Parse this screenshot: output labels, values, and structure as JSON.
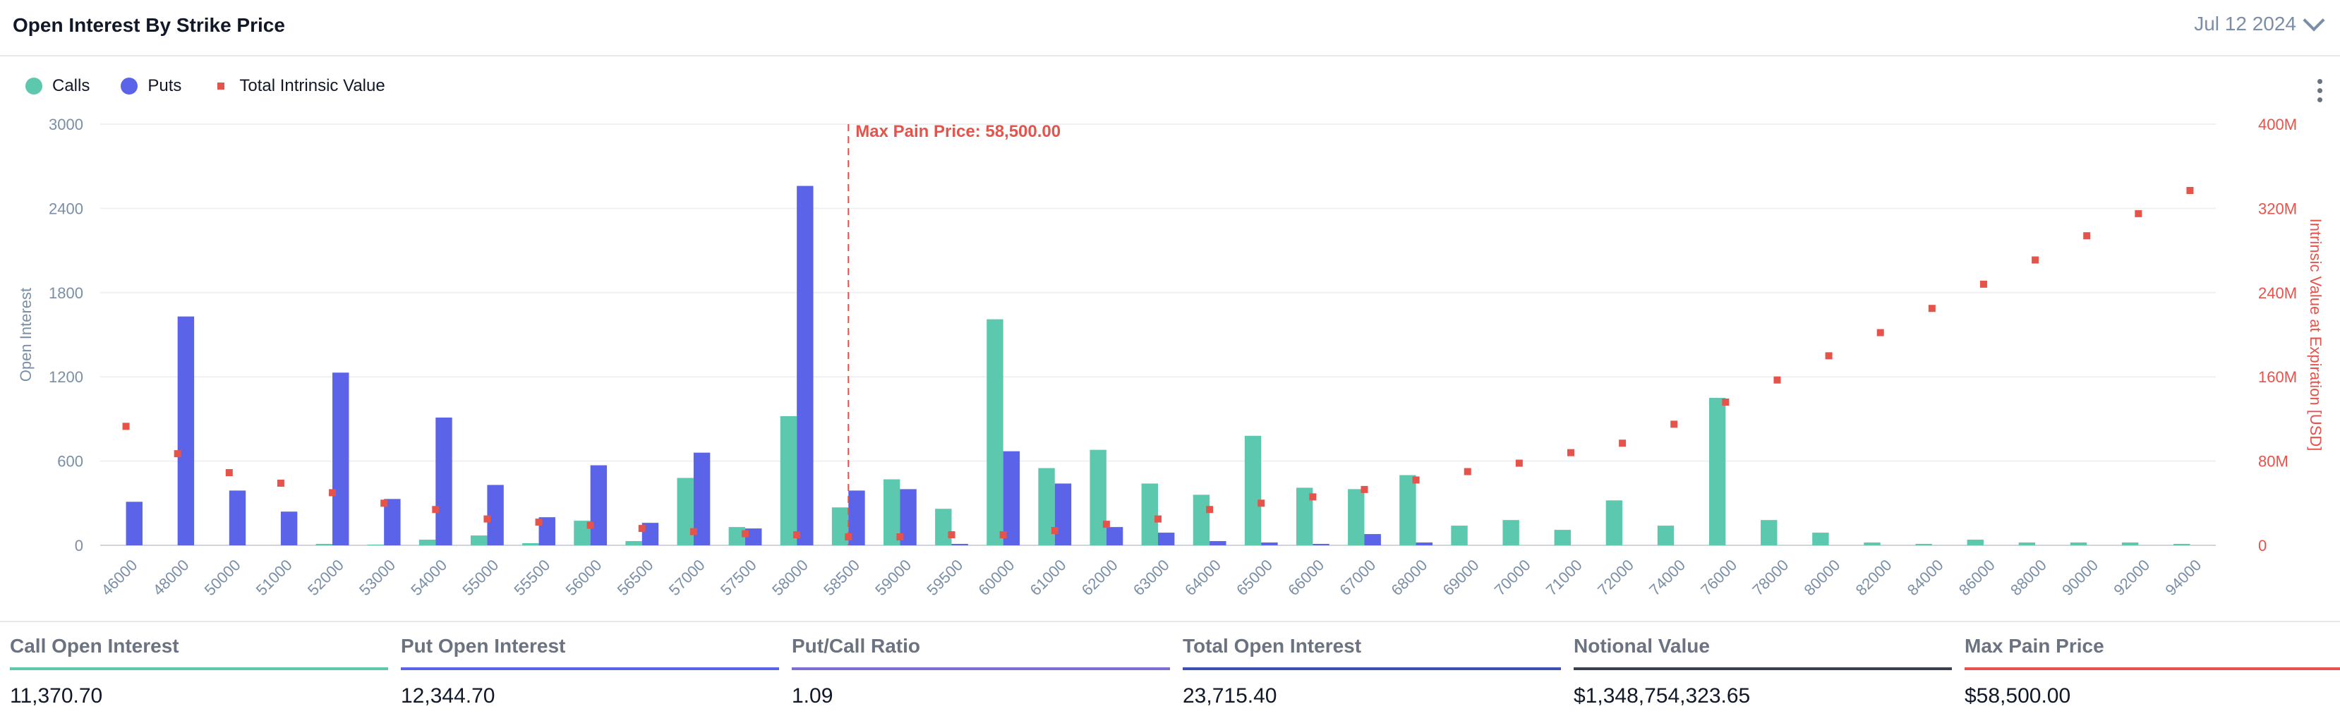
{
  "header": {
    "title": "Open Interest By Strike Price",
    "date": "Jul 12 2024"
  },
  "legend": {
    "calls": "Calls",
    "puts": "Puts",
    "intrinsic": "Total Intrinsic Value"
  },
  "colors": {
    "calls": "#5cc8ad",
    "puts": "#5b63e8",
    "intrinsic": "#e5534b",
    "maxpain": "#e5534b",
    "axis": "#7a8fa6",
    "grid": "#eef1f4"
  },
  "chart_data": {
    "type": "bar",
    "categories": [
      "46000",
      "48000",
      "50000",
      "51000",
      "52000",
      "53000",
      "54000",
      "55000",
      "55500",
      "56000",
      "56500",
      "57000",
      "57500",
      "58000",
      "58500",
      "59000",
      "59500",
      "60000",
      "61000",
      "62000",
      "63000",
      "64000",
      "65000",
      "66000",
      "67000",
      "68000",
      "69000",
      "70000",
      "71000",
      "72000",
      "74000",
      "76000",
      "78000",
      "80000",
      "82000",
      "84000",
      "86000",
      "88000",
      "90000",
      "92000",
      "94000"
    ],
    "series": [
      {
        "name": "Calls",
        "axis": "left",
        "values": [
          0,
          0,
          0,
          0,
          10,
          5,
          40,
          70,
          15,
          175,
          30,
          480,
          130,
          920,
          270,
          470,
          260,
          1610,
          550,
          680,
          440,
          360,
          780,
          410,
          400,
          500,
          140,
          180,
          110,
          320,
          140,
          1050,
          180,
          90,
          20,
          10,
          40,
          20,
          20,
          20,
          10
        ]
      },
      {
        "name": "Puts",
        "axis": "left",
        "values": [
          310,
          1630,
          390,
          240,
          1230,
          330,
          910,
          430,
          200,
          570,
          160,
          660,
          120,
          2560,
          390,
          400,
          10,
          670,
          440,
          130,
          90,
          30,
          20,
          10,
          80,
          20,
          0,
          0,
          0,
          0,
          0,
          0,
          0,
          0,
          0,
          0,
          0,
          0,
          0,
          0,
          0
        ]
      },
      {
        "name": "Total Intrinsic Value",
        "axis": "right",
        "type": "scatter",
        "values": [
          113,
          87,
          69,
          59,
          50,
          40,
          34,
          25,
          22,
          19,
          16,
          13,
          11,
          10,
          8,
          8,
          10,
          10,
          14,
          20,
          25,
          34,
          40,
          46,
          53,
          62,
          70,
          78,
          88,
          97,
          115,
          136,
          157,
          180,
          202,
          225,
          248,
          271,
          294,
          315,
          337
        ]
      }
    ],
    "yleft": {
      "label": "Open Interest",
      "ticks": [
        "3000",
        "2400",
        "1800",
        "1200",
        "600",
        "0"
      ],
      "lim": [
        0,
        3000
      ]
    },
    "yright": {
      "label": "Intrinsic Value at Expiration [USD]",
      "ticks": [
        "400M",
        "320M",
        "240M",
        "160M",
        "80M",
        "0"
      ],
      "lim": [
        0,
        400
      ]
    },
    "max_pain": {
      "label": "Max Pain Price: 58,500.00",
      "category": "58500"
    }
  },
  "stats": [
    {
      "label": "Call Open Interest",
      "value": "11,370.70",
      "color": "#5cc8ad"
    },
    {
      "label": "Put Open Interest",
      "value": "12,344.70",
      "color": "#5b63e8"
    },
    {
      "label": "Put/Call Ratio",
      "value": "1.09",
      "color": "#7b6fd6"
    },
    {
      "label": "Total Open Interest",
      "value": "23,715.40",
      "color": "#3b4fb8"
    },
    {
      "label": "Notional Value",
      "value": "$1,348,754,323.65",
      "color": "#374151"
    },
    {
      "label": "Max Pain Price",
      "value": "$58,500.00",
      "color": "#e5534b"
    }
  ]
}
